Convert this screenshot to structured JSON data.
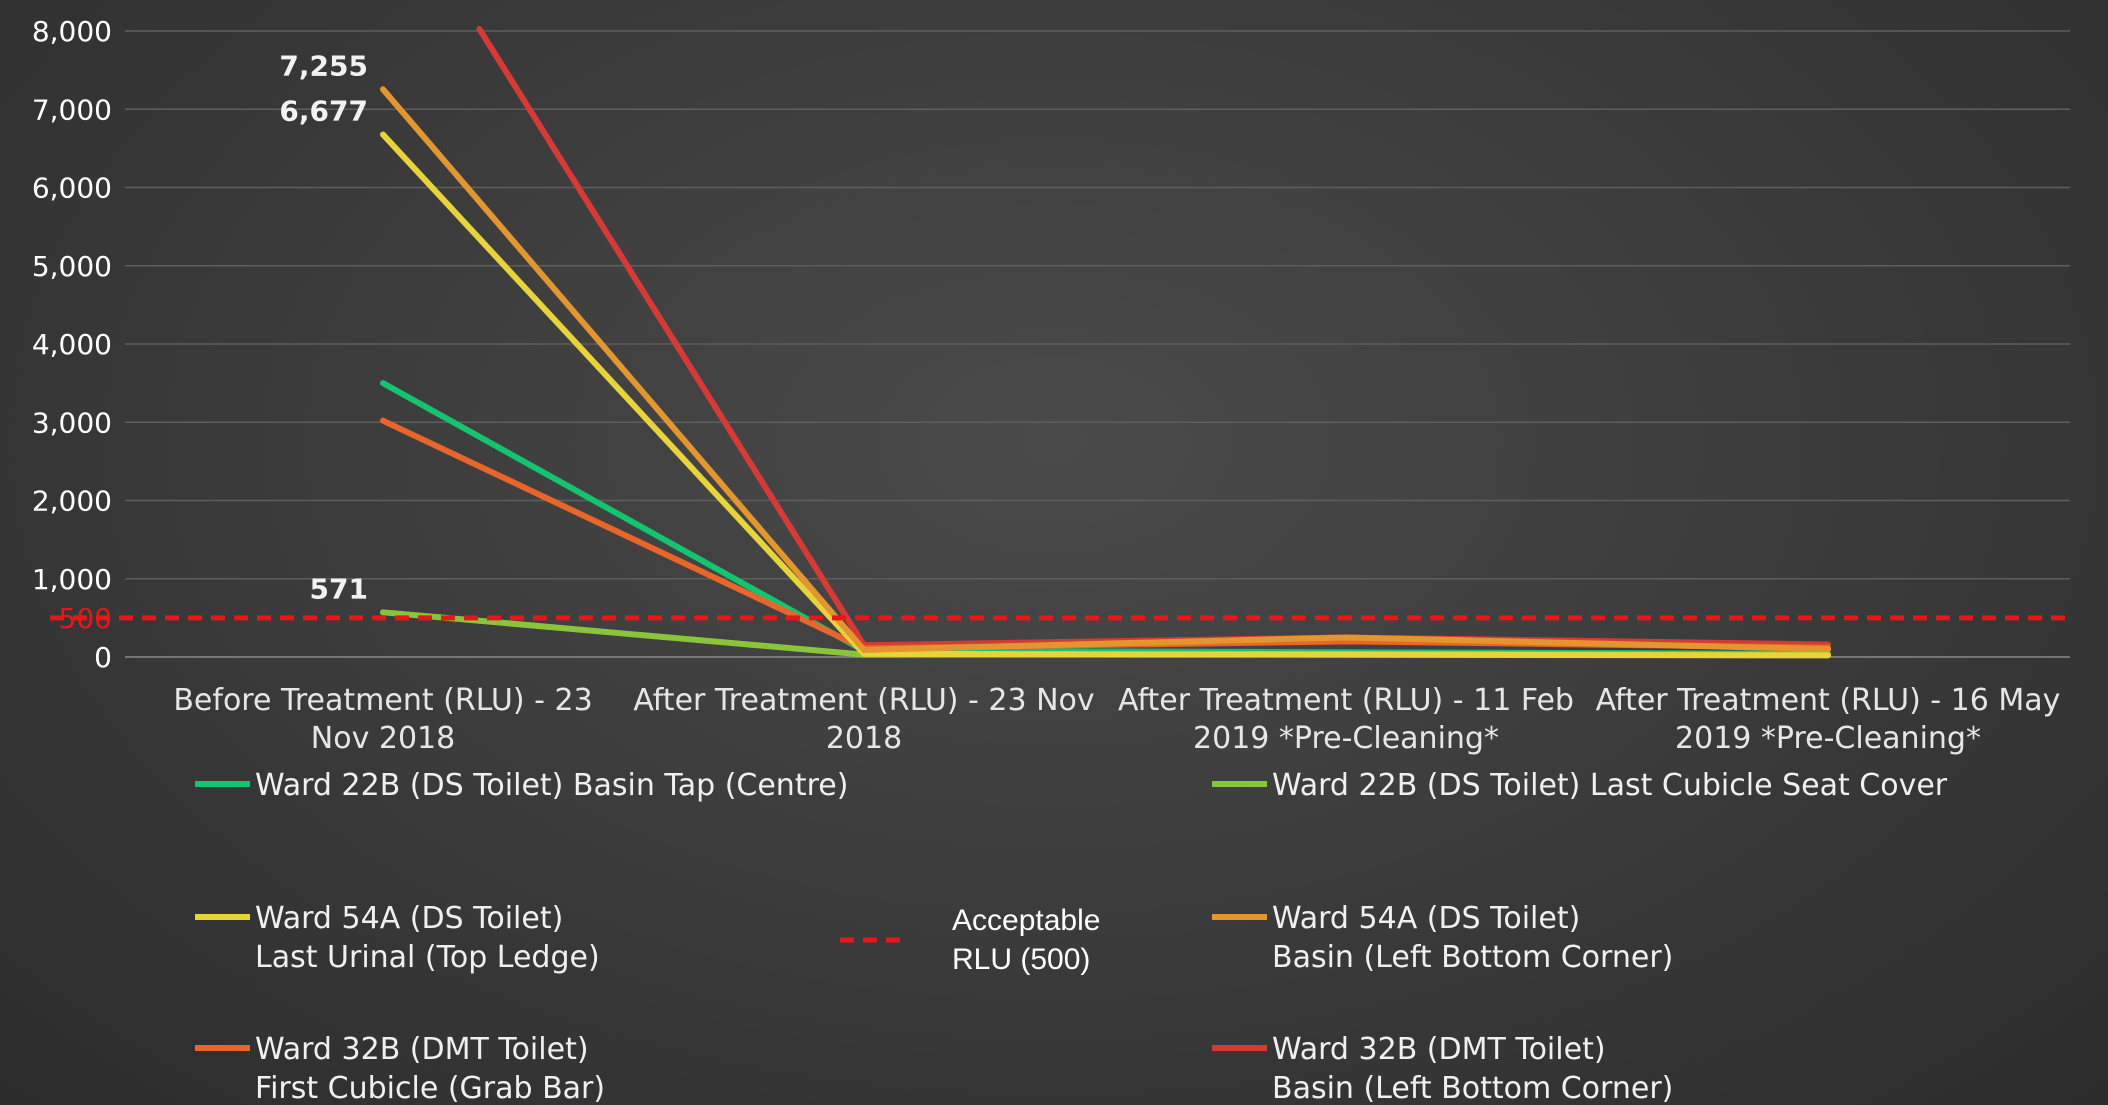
{
  "chart_data": {
    "type": "line",
    "categories": [
      [
        "Before Treatment (RLU)  -  23",
        "Nov 2018"
      ],
      [
        "After Treatment (RLU) - 23 Nov",
        "2018"
      ],
      [
        "After Treatment (RLU) - 11 Feb",
        "2019      *Pre-Cleaning*"
      ],
      [
        "After Treatment (RLU) - 16 May",
        "2019      *Pre-Cleaning*"
      ]
    ],
    "ylim": [
      0,
      8000
    ],
    "yticks": [
      0,
      1000,
      2000,
      3000,
      4000,
      5000,
      6000,
      7000,
      8000
    ],
    "ytick_labels": [
      "0",
      "1,000",
      "2,000",
      "3,000",
      "4,000",
      "5,000",
      "6,000",
      "7,000",
      "8,000"
    ],
    "threshold": {
      "value": 500,
      "label": "500",
      "color": "#e8161b",
      "legend": [
        "Acceptable",
        "RLU (500)"
      ]
    },
    "grid": true,
    "legend_position": "bottom",
    "series": [
      {
        "name": [
          "Ward 22B (DS Toilet) Basin Tap (Centre)"
        ],
        "color": "#14c46e",
        "values": [
          3500,
          80,
          60,
          40
        ]
      },
      {
        "name": [
          "Ward 22B (DS Toilet) Last Cubicle Seat Cover"
        ],
        "color": "#8ac43a",
        "values": [
          571,
          30,
          40,
          30
        ]
      },
      {
        "name": [
          "Ward 54A (DS Toilet)",
          "Last Urinal (Top Ledge)"
        ],
        "color": "#e6d43a",
        "values": [
          6677,
          40,
          30,
          20
        ]
      },
      {
        "name": [
          "Ward 54A (DS Toilet)",
          "Basin (Left Bottom Corner)"
        ],
        "color": "#e3952e",
        "values": [
          7255,
          90,
          250,
          100
        ]
      },
      {
        "name": [
          "Ward 32B (DMT Toilet)",
          "First Cubicle (Grab Bar)"
        ],
        "color": "#e8662a",
        "values": [
          3020,
          110,
          200,
          120
        ]
      },
      {
        "name": [
          "Ward 32B (DMT Toilet)",
          "Basin (Left Bottom Corner)"
        ],
        "color": "#d63a34",
        "values": [
          null,
          150,
          250,
          160
        ],
        "start_value": 10000
      }
    ],
    "data_labels": [
      {
        "series": 3,
        "index": 0,
        "text": "7,255"
      },
      {
        "series": 2,
        "index": 0,
        "text": "6,677"
      },
      {
        "series": 1,
        "index": 0,
        "text": "571"
      }
    ]
  }
}
